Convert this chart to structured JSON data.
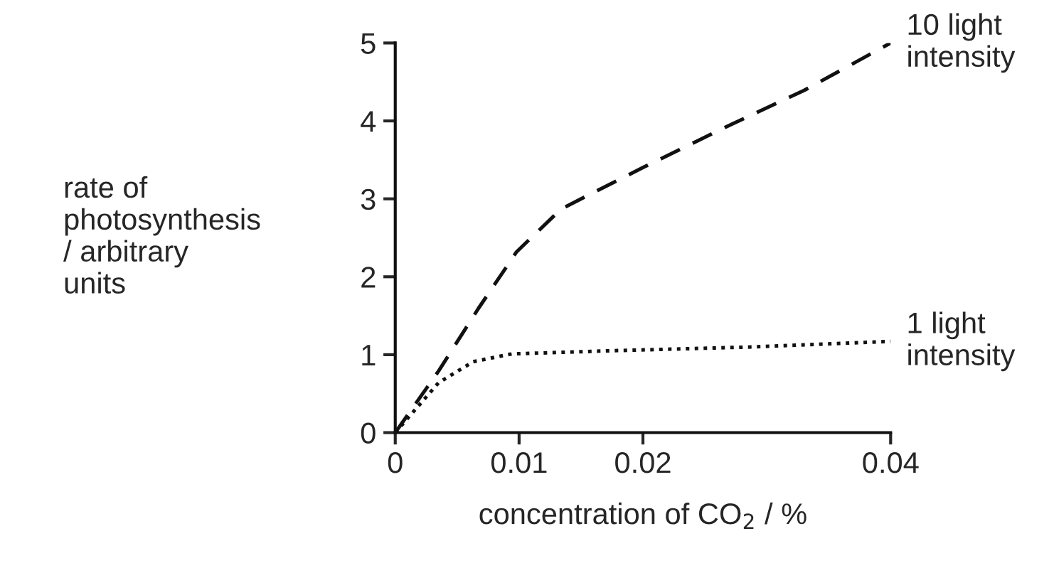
{
  "chart_data": {
    "type": "line",
    "xlabel": "concentration of CO$_{2}$ / %",
    "ylabel": "rate of\nphotosynthesis\n/ arbitrary\nunits",
    "xlim": [
      0,
      0.04
    ],
    "ylim": [
      0,
      5
    ],
    "xticks": [
      0,
      0.01,
      0.02,
      0.04
    ],
    "yticks": [
      0,
      1,
      2,
      3,
      4,
      5
    ],
    "grid": false,
    "legend": false,
    "series": [
      {
        "name": "10 light\nintensity",
        "color": "#111111",
        "line_style": "dashed",
        "x": [
          0,
          0.0035,
          0.0067,
          0.0098,
          0.0134,
          0.0201,
          0.0272,
          0.033,
          0.04
        ],
        "values": [
          0,
          0.79,
          1.59,
          2.32,
          2.87,
          3.41,
          3.96,
          4.39,
          5.0
        ]
      },
      {
        "name": "1 light\nintensity",
        "color": "#111111",
        "line_style": "dotted",
        "x": [
          0,
          0.0035,
          0.0063,
          0.0094,
          0.0173,
          0.029,
          0.04
        ],
        "values": [
          0,
          0.64,
          0.91,
          1.01,
          1.05,
          1.1,
          1.17
        ]
      }
    ]
  }
}
